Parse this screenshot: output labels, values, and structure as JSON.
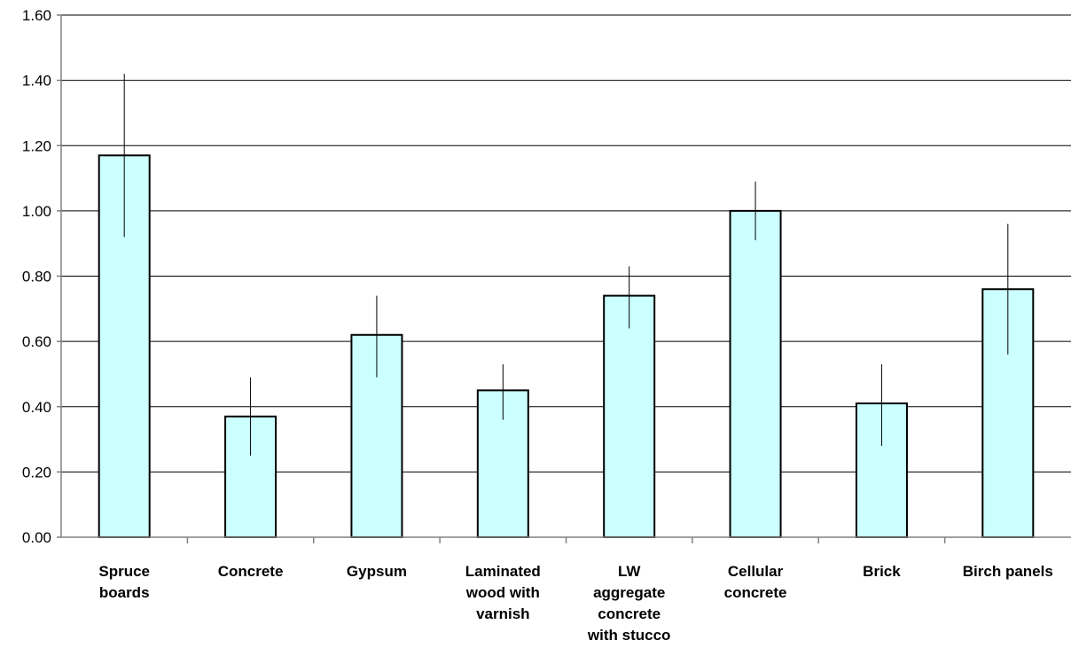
{
  "chart_data": {
    "type": "bar",
    "title": "",
    "xlabel": "",
    "ylabel": "",
    "ylim": [
      0,
      1.6
    ],
    "yticks": [
      "0.00",
      "0.20",
      "0.40",
      "0.60",
      "0.80",
      "1.00",
      "1.20",
      "1.40",
      "1.60"
    ],
    "grid": true,
    "legend": "none",
    "categories": [
      [
        "Spruce",
        "boards"
      ],
      [
        "Concrete"
      ],
      [
        "Gypsum"
      ],
      [
        "Laminated",
        "wood with",
        "varnish"
      ],
      [
        "LW",
        "aggregate",
        "concrete",
        "with stucco"
      ],
      [
        "Cellular",
        "concrete"
      ],
      [
        "Brick"
      ],
      [
        "Birch panels"
      ]
    ],
    "values": [
      1.17,
      0.37,
      0.62,
      0.45,
      0.74,
      1.0,
      0.41,
      0.76
    ],
    "error_low": [
      0.92,
      0.25,
      0.49,
      0.36,
      0.64,
      0.91,
      0.28,
      0.56
    ],
    "error_high": [
      1.42,
      0.49,
      0.74,
      0.53,
      0.83,
      1.09,
      0.53,
      0.96
    ],
    "colors": {
      "bar_fill": "#ccffff",
      "bar_stroke": "#000000",
      "grid": "#000000",
      "axis": "#808080",
      "error": "#000000"
    }
  }
}
